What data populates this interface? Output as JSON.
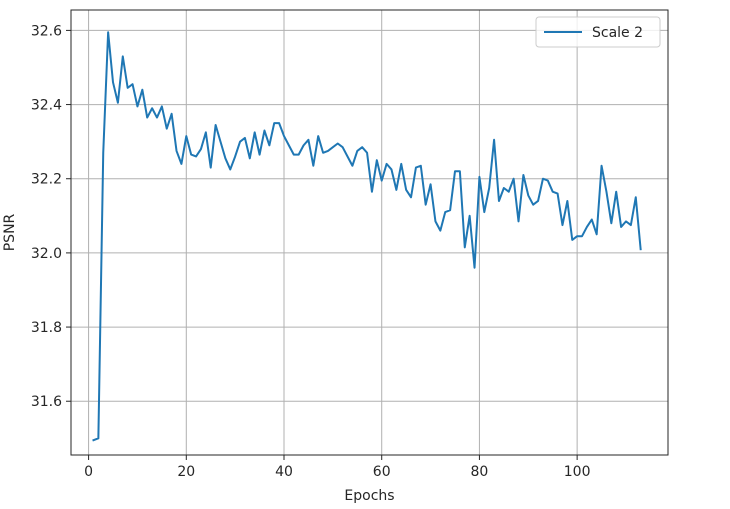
{
  "chart_data": {
    "type": "line",
    "title": "",
    "xlabel": "Epochs",
    "ylabel": "PSNR",
    "xlim": [
      -3.6,
      118.6
    ],
    "ylim": [
      31.455,
      32.655
    ],
    "xticks": [
      0,
      20,
      40,
      60,
      80,
      100
    ],
    "yticks": [
      31.6,
      31.8,
      32.0,
      32.2,
      32.4,
      32.6
    ],
    "xtick_labels": [
      "0",
      "20",
      "40",
      "60",
      "80",
      "100"
    ],
    "ytick_labels": [
      "31.6",
      "31.8",
      "32.0",
      "32.2",
      "32.4",
      "32.6"
    ],
    "grid": true,
    "legend_position": "top-right",
    "series": [
      {
        "name": "Scale 2",
        "color": "#1f77b4",
        "x": [
          1,
          2,
          3,
          4,
          5,
          6,
          7,
          8,
          9,
          10,
          11,
          12,
          13,
          14,
          15,
          16,
          17,
          18,
          19,
          20,
          21,
          22,
          23,
          24,
          25,
          26,
          27,
          28,
          29,
          30,
          31,
          32,
          33,
          34,
          35,
          36,
          37,
          38,
          39,
          40,
          41,
          42,
          43,
          44,
          45,
          46,
          47,
          48,
          49,
          50,
          51,
          52,
          53,
          54,
          55,
          56,
          57,
          58,
          59,
          60,
          61,
          62,
          63,
          64,
          65,
          66,
          67,
          68,
          69,
          70,
          71,
          72,
          73,
          74,
          75,
          76,
          77,
          78,
          79,
          80,
          81,
          82,
          83,
          84,
          85,
          86,
          87,
          88,
          89,
          90,
          91,
          92,
          93,
          94,
          95,
          96,
          97,
          98,
          99,
          100,
          101,
          102,
          103,
          104,
          105,
          106,
          107,
          108,
          109,
          110,
          111,
          112,
          113
        ],
        "y": [
          31.495,
          31.5,
          32.27,
          32.595,
          32.46,
          32.405,
          32.53,
          32.445,
          32.455,
          32.395,
          32.44,
          32.365,
          32.39,
          32.365,
          32.395,
          32.335,
          32.375,
          32.275,
          32.24,
          32.315,
          32.265,
          32.26,
          32.28,
          32.325,
          32.23,
          32.345,
          32.3,
          32.255,
          32.225,
          32.26,
          32.3,
          32.31,
          32.255,
          32.325,
          32.265,
          32.33,
          32.29,
          32.35,
          32.35,
          32.315,
          32.29,
          32.265,
          32.265,
          32.29,
          32.305,
          32.235,
          32.315,
          32.27,
          32.275,
          32.285,
          32.295,
          32.285,
          32.26,
          32.235,
          32.275,
          32.285,
          32.27,
          32.165,
          32.25,
          32.195,
          32.24,
          32.225,
          32.17,
          32.24,
          32.17,
          32.15,
          32.23,
          32.235,
          32.13,
          32.185,
          32.085,
          32.06,
          32.11,
          32.115,
          32.22,
          32.22,
          32.015,
          32.1,
          31.96,
          32.205,
          32.11,
          32.175,
          32.305,
          32.14,
          32.175,
          32.165,
          32.2,
          32.085,
          32.21,
          32.155,
          32.13,
          32.14,
          32.2,
          32.195,
          32.165,
          32.16,
          32.075,
          32.14,
          32.035,
          32.045,
          32.045,
          32.07,
          32.09,
          32.05,
          32.235,
          32.165,
          32.08,
          32.165,
          32.07,
          32.085,
          32.075,
          32.15,
          32.01
        ]
      }
    ]
  }
}
